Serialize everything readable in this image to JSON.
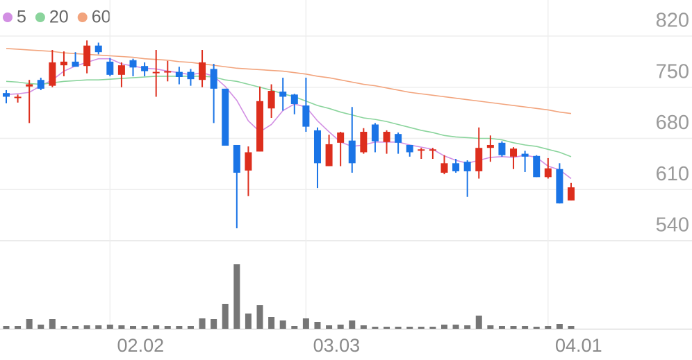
{
  "chart_data": {
    "type": "candlestick",
    "categories": [
      null,
      null,
      null,
      null,
      null,
      null,
      null,
      null,
      null,
      "02.02",
      null,
      null,
      null,
      null,
      null,
      null,
      null,
      null,
      null,
      null,
      null,
      null,
      null,
      null,
      null,
      null,
      "03.03",
      null,
      null,
      null,
      null,
      null,
      null,
      null,
      null,
      null,
      null,
      null,
      null,
      null,
      null,
      null,
      null,
      null,
      null,
      null,
      null,
      "04.01",
      null,
      null
    ],
    "open": [
      742,
      736,
      751,
      760,
      752,
      780,
      785,
      779,
      807,
      785,
      767,
      787,
      779,
      770,
      771,
      771,
      771,
      760,
      775,
      748,
      671,
      636,
      662,
      721,
      744,
      740,
      725,
      691,
      642,
      674,
      677,
      661,
      699,
      675,
      686,
      671,
      664,
      664,
      633,
      646,
      648,
      635,
      667,
      674,
      655,
      659,
      656,
      627,
      638,
      595
    ],
    "high": [
      746,
      740,
      760,
      763,
      801,
      799,
      798,
      814,
      811,
      790,
      784,
      789,
      784,
      801,
      786,
      778,
      775,
      801,
      782,
      748,
      671,
      669,
      751,
      754,
      763,
      741,
      763,
      695,
      685,
      689,
      723,
      694,
      701,
      691,
      688,
      671,
      667,
      667,
      657,
      652,
      650,
      695,
      684,
      676,
      668,
      663,
      657,
      653,
      646,
      619
    ],
    "low": [
      728,
      729,
      701,
      746,
      750,
      765,
      778,
      769,
      795,
      765,
      750,
      765,
      765,
      737,
      758,
      754,
      752,
      750,
      701,
      670,
      557,
      601,
      662,
      708,
      718,
      713,
      689,
      612,
      642,
      642,
      633,
      659,
      661,
      659,
      659,
      655,
      652,
      652,
      631,
      633,
      600,
      625,
      648,
      655,
      638,
      634,
      627,
      625,
      591,
      595
    ],
    "close": [
      737,
      737,
      754,
      748,
      784,
      785,
      778,
      807,
      798,
      767,
      780,
      777,
      772,
      771,
      772,
      764,
      761,
      784,
      748,
      670,
      633,
      661,
      731,
      745,
      737,
      727,
      696,
      646,
      672,
      688,
      646,
      689,
      676,
      689,
      674,
      661,
      665,
      665,
      646,
      635,
      635,
      667,
      671,
      657,
      666,
      655,
      627,
      639,
      591,
      613
    ],
    "up_color": "#dd2e1d",
    "down_color": "#1a74e6",
    "ylim": [
      540,
      820
    ],
    "yticks": [
      540,
      610,
      680,
      750,
      820
    ],
    "grid": true,
    "moving_averages": [
      {
        "name": "5",
        "color": "#d28fe3",
        "values": [
          740,
          741,
          743,
          752,
          760,
          772,
          779,
          784,
          789,
          789,
          782,
          779,
          776,
          775,
          772,
          770,
          767,
          770,
          765,
          751,
          732,
          704,
          689,
          699,
          718,
          727,
          723,
          704,
          689,
          675,
          669,
          671,
          675,
          675,
          675,
          671,
          668,
          665,
          656,
          650,
          646,
          650,
          654,
          655,
          654,
          657,
          654,
          642,
          637,
          625
        ]
      },
      {
        "name": "20",
        "color": "#8ad49c",
        "values": [
          758,
          757,
          755,
          754,
          756,
          758,
          759,
          760,
          760,
          761,
          762,
          763,
          764,
          765,
          765,
          765,
          765,
          765,
          764,
          760,
          758,
          754,
          750,
          746,
          741,
          737,
          731,
          725,
          721,
          716,
          712,
          708,
          706,
          703,
          699,
          695,
          691,
          688,
          684,
          682,
          681,
          680,
          680,
          678,
          674,
          671,
          669,
          665,
          661,
          655
        ]
      },
      {
        "name": "60",
        "color": "#f2a47d",
        "values": [
          803,
          802,
          801,
          800,
          799,
          797,
          796,
          795,
          794,
          793,
          792,
          791,
          789,
          788,
          787,
          785,
          784,
          782,
          780,
          778,
          776,
          775,
          774,
          773,
          772,
          770,
          768,
          765,
          763,
          760,
          757,
          754,
          752,
          749,
          746,
          743,
          741,
          739,
          737,
          735,
          733,
          731,
          729,
          727,
          725,
          723,
          721,
          719,
          716,
          714
        ]
      }
    ],
    "volume": {
      "color": "#767676",
      "ylim": [
        0,
        100
      ],
      "values": [
        4,
        4,
        14,
        6,
        14,
        4,
        4,
        5,
        5,
        6,
        5,
        4,
        4,
        5,
        4,
        4,
        4,
        15,
        14,
        36,
        93,
        22,
        34,
        17,
        12,
        4,
        15,
        10,
        5,
        6,
        12,
        5,
        3,
        3,
        3,
        3,
        3,
        3,
        6,
        6,
        5,
        19,
        5,
        4,
        4,
        4,
        3,
        4,
        7,
        4
      ]
    }
  }
}
